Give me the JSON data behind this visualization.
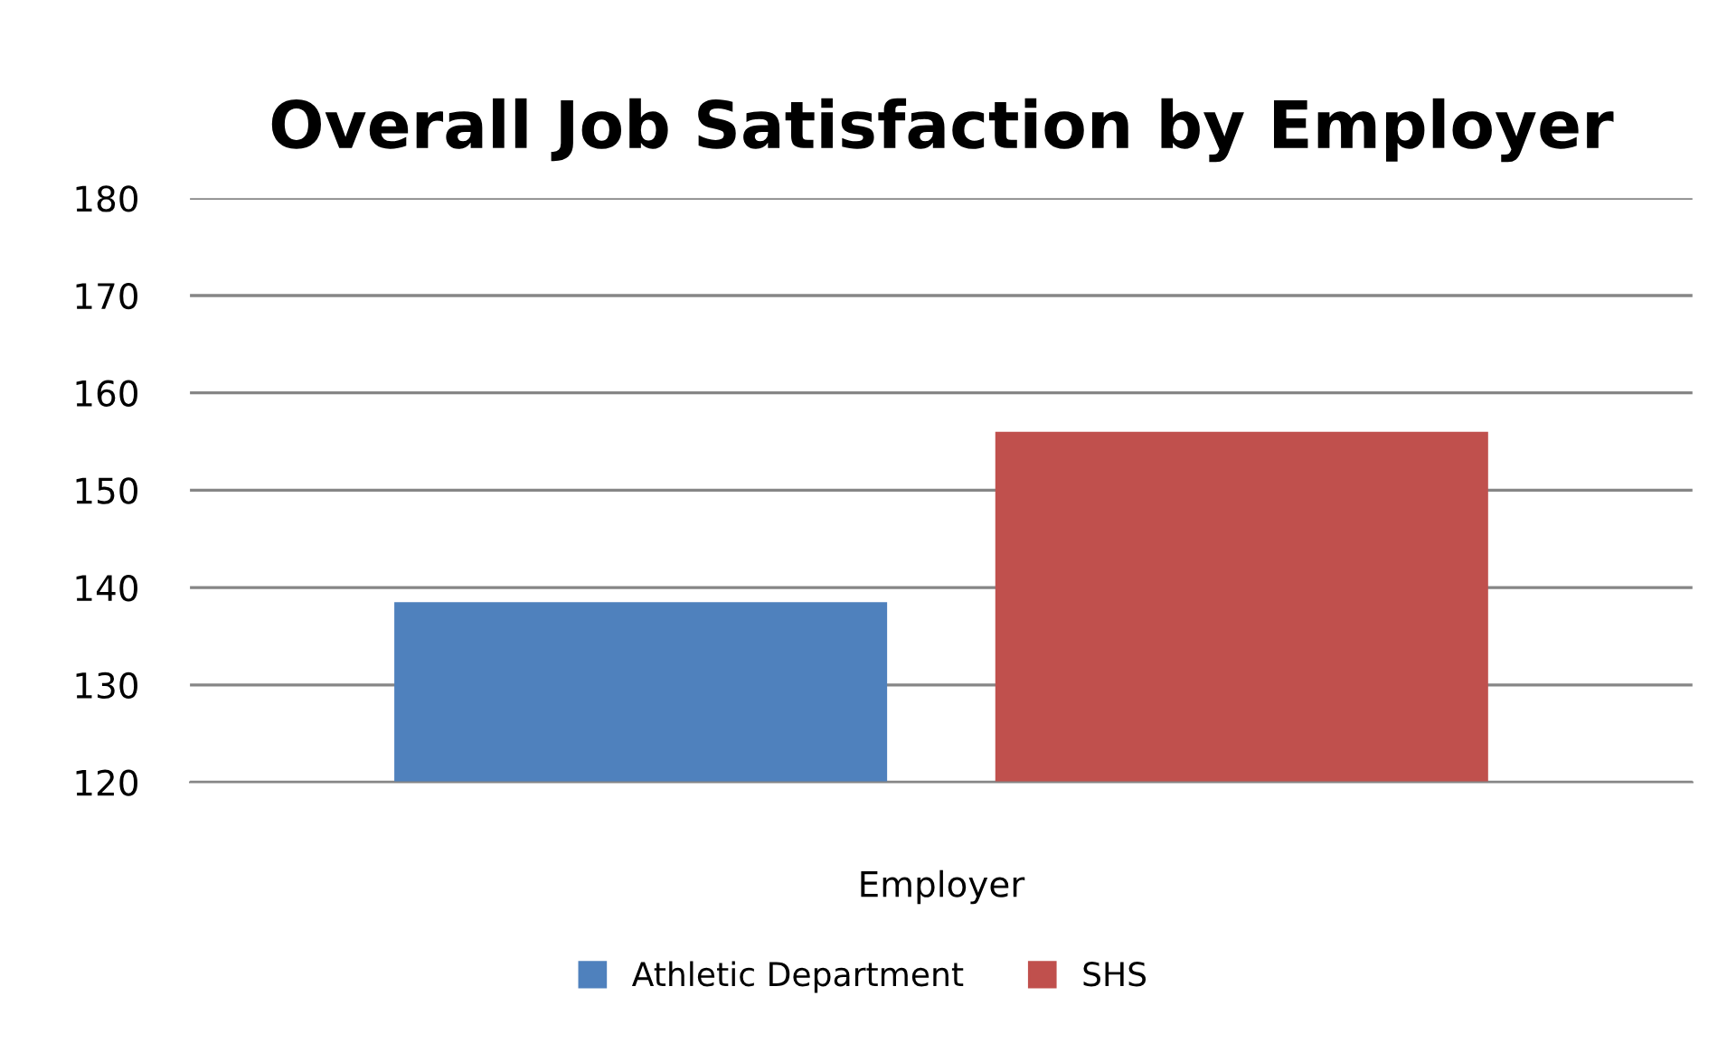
{
  "chart_data": {
    "type": "bar",
    "title": "Overall Job Satisfaction by Employer",
    "categories": [
      "Employer"
    ],
    "series": [
      {
        "name": "Athletic Department",
        "color": "#4f81bd",
        "values": [
          138.5
        ]
      },
      {
        "name": "SHS",
        "color": "#c0504d",
        "values": [
          156
        ]
      }
    ],
    "ylim": [
      120,
      180
    ],
    "yticks": [
      120,
      130,
      140,
      150,
      160,
      170,
      180
    ],
    "grid": "y",
    "legend": "bottom"
  }
}
